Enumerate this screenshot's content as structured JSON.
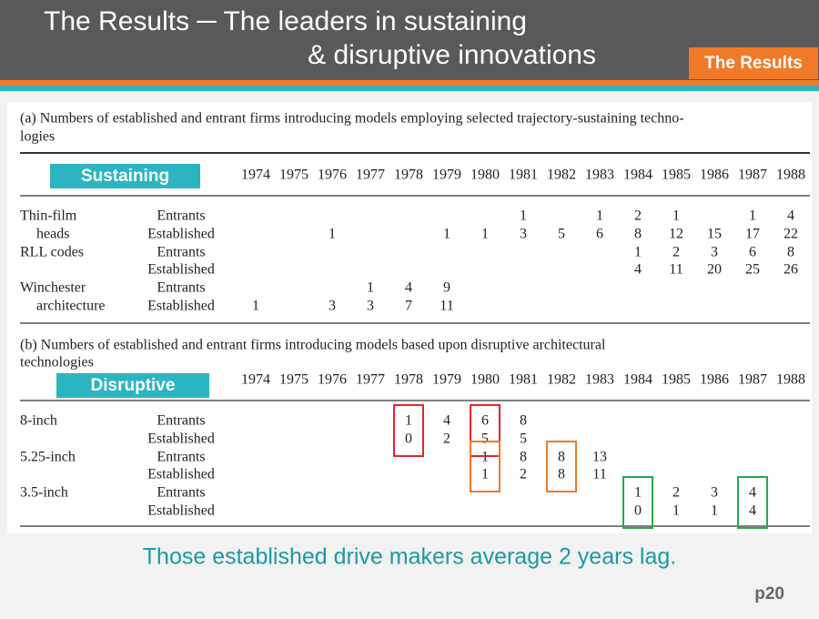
{
  "header": {
    "title_lines": [
      "The Results ─ The leaders in sustaining",
      "& disruptive innovations"
    ],
    "badge": "The Results"
  },
  "tables": [
    {
      "caption_lines": [
        "(a) Numbers of established and entrant firms introducing models employing selected trajectory-sustaining techno-",
        "logies"
      ],
      "tag": "Sustaining",
      "years": [
        1974,
        1975,
        1976,
        1977,
        1978,
        1979,
        1980,
        1981,
        1982,
        1983,
        1984,
        1985,
        1986,
        1987,
        1988
      ],
      "rows": [
        {
          "label": "Thin-film",
          "type": "Entrants",
          "cells": [
            null,
            null,
            null,
            null,
            null,
            null,
            null,
            1,
            null,
            1,
            2,
            1,
            null,
            1,
            4
          ]
        },
        {
          "label": "heads",
          "type": "Established",
          "cells": [
            null,
            null,
            1,
            null,
            null,
            1,
            1,
            3,
            5,
            6,
            8,
            12,
            15,
            17,
            22
          ]
        },
        {
          "label": "RLL codes",
          "type": "Entrants",
          "cells": [
            null,
            null,
            null,
            null,
            null,
            null,
            null,
            null,
            null,
            null,
            1,
            2,
            3,
            6,
            8
          ]
        },
        {
          "label": null,
          "type": "Established",
          "cells": [
            null,
            null,
            null,
            null,
            null,
            null,
            null,
            null,
            null,
            null,
            4,
            11,
            20,
            25,
            26
          ]
        },
        {
          "label": "Winchester",
          "type": "Entrants",
          "cells": [
            null,
            null,
            null,
            1,
            4,
            9,
            null,
            null,
            null,
            null,
            null,
            null,
            null,
            null,
            null
          ]
        },
        {
          "label": "architecture",
          "type": "Established",
          "cells": [
            1,
            null,
            3,
            3,
            7,
            11,
            null,
            null,
            null,
            null,
            null,
            null,
            null,
            null,
            null
          ]
        }
      ]
    },
    {
      "caption_lines": [
        "(b) Numbers of established and entrant firms introducing models based upon disruptive architectural",
        "technologies"
      ],
      "tag": "Disruptive",
      "years": [
        1974,
        1975,
        1976,
        1977,
        1978,
        1979,
        1980,
        1981,
        1982,
        1983,
        1984,
        1985,
        1986,
        1987,
        1988
      ],
      "rows": [
        {
          "label": "8-inch",
          "type": "Entrants",
          "cells": [
            null,
            null,
            null,
            null,
            1,
            4,
            6,
            8,
            null,
            null,
            null,
            null,
            null,
            null,
            null
          ]
        },
        {
          "label": null,
          "type": "Established",
          "cells": [
            null,
            null,
            null,
            null,
            0,
            2,
            5,
            5,
            null,
            null,
            null,
            null,
            null,
            null,
            null
          ]
        },
        {
          "label": "5.25-inch",
          "type": "Entrants",
          "cells": [
            null,
            null,
            null,
            null,
            null,
            null,
            1,
            8,
            8,
            13,
            null,
            null,
            null,
            null,
            null
          ]
        },
        {
          "label": null,
          "type": "Established",
          "cells": [
            null,
            null,
            null,
            null,
            null,
            null,
            1,
            2,
            8,
            11,
            null,
            null,
            null,
            null,
            null
          ]
        },
        {
          "label": "3.5-inch",
          "type": "Entrants",
          "cells": [
            null,
            null,
            null,
            null,
            null,
            null,
            null,
            null,
            null,
            null,
            1,
            2,
            3,
            4,
            null
          ]
        },
        {
          "label": null,
          "type": "Established",
          "cells": [
            null,
            null,
            null,
            null,
            null,
            null,
            null,
            null,
            null,
            null,
            0,
            1,
            1,
            4,
            null
          ]
        }
      ]
    }
  ],
  "footer": {
    "note": "Those established drive makers average 2 years lag.",
    "page": "p20"
  }
}
